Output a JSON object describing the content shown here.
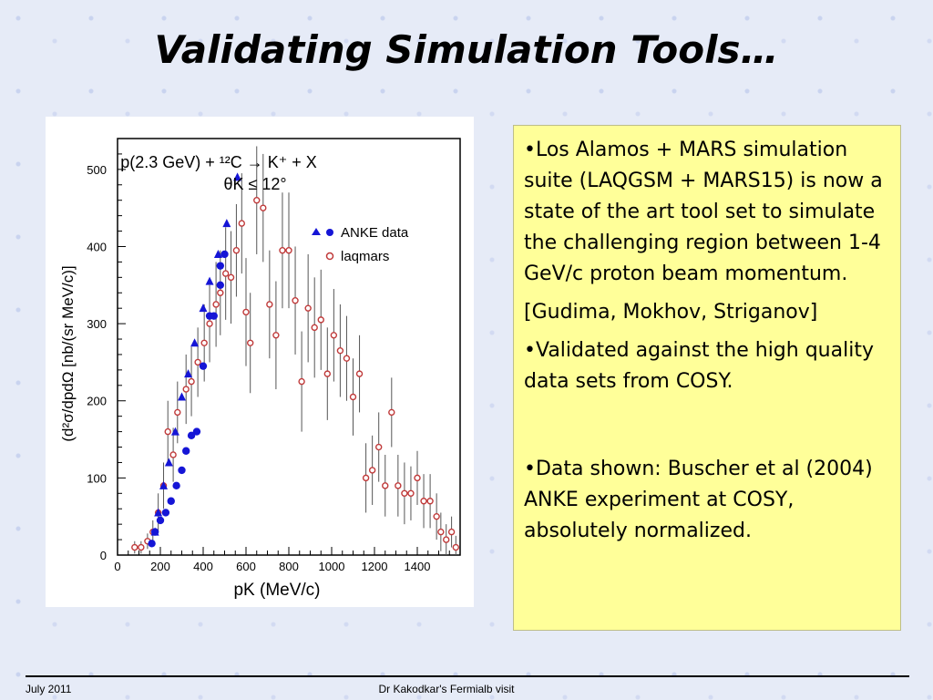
{
  "slide": {
    "title": "Validating Simulation Tools…",
    "bullets": [
      "•Los Alamos + MARS simulation suite (LAQGSM + MARS15) is now a state of the art tool set to simulate the challenging region between 1-4 GeV/c proton beam momentum.",
      "[Gudima, Mokhov, Striganov]",
      "•Validated against the high quality data sets from COSY.",
      "•Data shown: Buscher et al (2004) ANKE experiment at COSY, absolutely normalized."
    ]
  },
  "footer": {
    "date": "July 2011",
    "center": "Dr Kakodkar's Fermialb visit"
  },
  "colors": {
    "anke": "#1515d6",
    "laqmars": "#c03a3a",
    "textbox": "#ffff99"
  },
  "chart_data": {
    "type": "scatter",
    "annotation": {
      "line1": "p(2.3 GeV) + ¹²C → K⁺ + X",
      "line2": "θK ≤ 12°"
    },
    "xlabel": "pK (MeV/c)",
    "ylabel": "(d²σ/dpdΩ [nb/(sr MeV/c)]",
    "xlim": [
      0,
      1600
    ],
    "ylim": [
      0,
      540
    ],
    "xticks": [
      0,
      200,
      400,
      600,
      800,
      1000,
      1200,
      1400
    ],
    "yticks": [
      0,
      100,
      200,
      300,
      400,
      500
    ],
    "legend": {
      "placement": "upper-right",
      "entries": [
        "ANKE data",
        "laqmars"
      ]
    },
    "series": [
      {
        "name": "ANKE data",
        "marker": "triangle",
        "points": [
          [
            175,
            30
          ],
          [
            190,
            55
          ],
          [
            215,
            90
          ],
          [
            240,
            120
          ],
          [
            270,
            160
          ],
          [
            300,
            205
          ],
          [
            330,
            235
          ],
          [
            360,
            275
          ],
          [
            400,
            320
          ],
          [
            430,
            355
          ],
          [
            470,
            390
          ],
          [
            510,
            430
          ],
          [
            560,
            490
          ]
        ]
      },
      {
        "name": "ANKE data",
        "marker": "circle",
        "points": [
          [
            160,
            15
          ],
          [
            175,
            30
          ],
          [
            200,
            45
          ],
          [
            225,
            55
          ],
          [
            250,
            70
          ],
          [
            275,
            90
          ],
          [
            300,
            110
          ],
          [
            320,
            135
          ],
          [
            345,
            155
          ],
          [
            370,
            160
          ],
          [
            400,
            245
          ],
          [
            430,
            310
          ],
          [
            450,
            310
          ],
          [
            480,
            350
          ],
          [
            480,
            375
          ],
          [
            500,
            390
          ]
        ]
      },
      {
        "name": "laqmars",
        "marker": "circle-open",
        "points": [
          {
            "x": 80,
            "y": 10,
            "err": 8
          },
          {
            "x": 110,
            "y": 10,
            "err": 8
          },
          {
            "x": 140,
            "y": 18,
            "err": 10
          },
          {
            "x": 165,
            "y": 30,
            "err": 15
          },
          {
            "x": 190,
            "y": 55,
            "err": 25
          },
          {
            "x": 215,
            "y": 90,
            "err": 30
          },
          {
            "x": 235,
            "y": 160,
            "err": 40
          },
          {
            "x": 260,
            "y": 130,
            "err": 35
          },
          {
            "x": 280,
            "y": 185,
            "err": 40
          },
          {
            "x": 320,
            "y": 215,
            "err": 45
          },
          {
            "x": 345,
            "y": 225,
            "err": 45
          },
          {
            "x": 375,
            "y": 250,
            "err": 45
          },
          {
            "x": 405,
            "y": 275,
            "err": 50
          },
          {
            "x": 430,
            "y": 300,
            "err": 50
          },
          {
            "x": 460,
            "y": 325,
            "err": 55
          },
          {
            "x": 480,
            "y": 340,
            "err": 55
          },
          {
            "x": 505,
            "y": 365,
            "err": 60
          },
          {
            "x": 530,
            "y": 360,
            "err": 60
          },
          {
            "x": 555,
            "y": 395,
            "err": 60
          },
          {
            "x": 580,
            "y": 430,
            "err": 65
          },
          {
            "x": 600,
            "y": 315,
            "err": 70
          },
          {
            "x": 620,
            "y": 275,
            "err": 65
          },
          {
            "x": 650,
            "y": 460,
            "err": 70
          },
          {
            "x": 680,
            "y": 450,
            "err": 70
          },
          {
            "x": 710,
            "y": 325,
            "err": 70
          },
          {
            "x": 740,
            "y": 285,
            "err": 70
          },
          {
            "x": 770,
            "y": 395,
            "err": 75
          },
          {
            "x": 800,
            "y": 395,
            "err": 75
          },
          {
            "x": 830,
            "y": 330,
            "err": 70
          },
          {
            "x": 860,
            "y": 225,
            "err": 65
          },
          {
            "x": 890,
            "y": 320,
            "err": 70
          },
          {
            "x": 920,
            "y": 295,
            "err": 65
          },
          {
            "x": 950,
            "y": 305,
            "err": 65
          },
          {
            "x": 980,
            "y": 235,
            "err": 60
          },
          {
            "x": 1010,
            "y": 285,
            "err": 60
          },
          {
            "x": 1040,
            "y": 265,
            "err": 60
          },
          {
            "x": 1070,
            "y": 255,
            "err": 55
          },
          {
            "x": 1100,
            "y": 205,
            "err": 50
          },
          {
            "x": 1130,
            "y": 235,
            "err": 50
          },
          {
            "x": 1160,
            "y": 100,
            "err": 45
          },
          {
            "x": 1190,
            "y": 110,
            "err": 45
          },
          {
            "x": 1220,
            "y": 140,
            "err": 45
          },
          {
            "x": 1250,
            "y": 90,
            "err": 40
          },
          {
            "x": 1280,
            "y": 185,
            "err": 45
          },
          {
            "x": 1310,
            "y": 90,
            "err": 40
          },
          {
            "x": 1340,
            "y": 80,
            "err": 40
          },
          {
            "x": 1370,
            "y": 80,
            "err": 35
          },
          {
            "x": 1400,
            "y": 100,
            "err": 35
          },
          {
            "x": 1430,
            "y": 70,
            "err": 35
          },
          {
            "x": 1460,
            "y": 70,
            "err": 35
          },
          {
            "x": 1490,
            "y": 50,
            "err": 30
          },
          {
            "x": 1510,
            "y": 30,
            "err": 25
          },
          {
            "x": 1535,
            "y": 20,
            "err": 20
          },
          {
            "x": 1560,
            "y": 30,
            "err": 20
          },
          {
            "x": 1580,
            "y": 10,
            "err": 15
          }
        ]
      }
    ]
  }
}
